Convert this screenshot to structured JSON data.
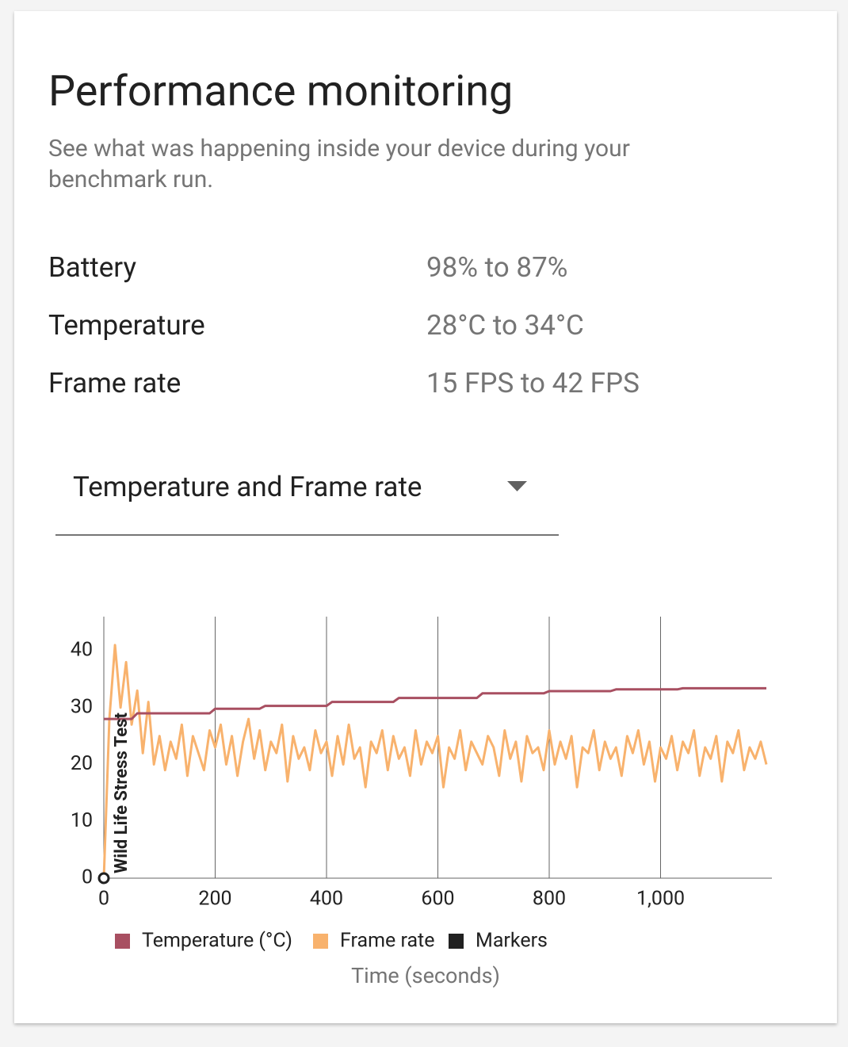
{
  "header": {
    "title": "Performance monitoring",
    "subtitle": "See what was happening inside your device during your benchmark run."
  },
  "stats": [
    {
      "label": "Battery",
      "value": "98% to 87%"
    },
    {
      "label": "Temperature",
      "value": "28°C to 34°C"
    },
    {
      "label": "Frame rate",
      "value": "15 FPS to 42 FPS"
    }
  ],
  "dropdown": {
    "selected": "Temperature and Frame rate"
  },
  "chart_data": {
    "type": "line",
    "x_label": "Time (seconds)",
    "x": [
      0,
      10,
      20,
      30,
      40,
      50,
      60,
      70,
      80,
      90,
      100,
      110,
      120,
      130,
      140,
      150,
      160,
      170,
      180,
      190,
      200,
      210,
      220,
      230,
      240,
      250,
      260,
      270,
      280,
      290,
      300,
      310,
      320,
      330,
      340,
      350,
      360,
      370,
      380,
      390,
      400,
      410,
      420,
      430,
      440,
      450,
      460,
      470,
      480,
      490,
      500,
      510,
      520,
      530,
      540,
      550,
      560,
      570,
      580,
      590,
      600,
      610,
      620,
      630,
      640,
      650,
      660,
      670,
      680,
      690,
      700,
      710,
      720,
      730,
      740,
      750,
      760,
      770,
      780,
      790,
      800,
      810,
      820,
      830,
      840,
      850,
      860,
      870,
      880,
      890,
      900,
      910,
      920,
      930,
      940,
      950,
      960,
      970,
      980,
      990,
      1000,
      1010,
      1020,
      1030,
      1040,
      1050,
      1060,
      1070,
      1080,
      1090,
      1100,
      1110,
      1120,
      1130,
      1140,
      1150,
      1160,
      1170,
      1180,
      1190
    ],
    "series": [
      {
        "name": "Temperature (°C)",
        "color": "#a84f61",
        "values": [
          28,
          28,
          28,
          28,
          28,
          28,
          29,
          29,
          29,
          29,
          29,
          29,
          29,
          29,
          29,
          29,
          29,
          29,
          29,
          29,
          29.8,
          29.8,
          29.8,
          29.8,
          29.8,
          29.8,
          29.8,
          29.8,
          29.8,
          30.3,
          30.3,
          30.3,
          30.3,
          30.3,
          30.3,
          30.3,
          30.3,
          30.3,
          30.3,
          30.3,
          30.3,
          31,
          31,
          31,
          31,
          31,
          31,
          31,
          31,
          31,
          31,
          31,
          31,
          31.7,
          31.7,
          31.7,
          31.7,
          31.7,
          31.7,
          31.7,
          31.7,
          31.7,
          31.7,
          31.7,
          31.7,
          31.7,
          31.7,
          31.7,
          32.5,
          32.5,
          32.5,
          32.5,
          32.5,
          32.5,
          32.5,
          32.5,
          32.5,
          32.5,
          32.5,
          32.5,
          32.9,
          32.9,
          32.9,
          32.9,
          32.9,
          32.9,
          32.9,
          32.9,
          32.9,
          32.9,
          32.9,
          32.9,
          33.2,
          33.2,
          33.2,
          33.2,
          33.2,
          33.2,
          33.2,
          33.2,
          33.2,
          33.2,
          33.2,
          33.2,
          33.4,
          33.4,
          33.4,
          33.4,
          33.4,
          33.4,
          33.4,
          33.4,
          33.4,
          33.4,
          33.4,
          33.4,
          33.4,
          33.4,
          33.4,
          33.4
        ]
      },
      {
        "name": "Frame rate",
        "color": "#f8b26d",
        "values": [
          0,
          28,
          41,
          30,
          38,
          27,
          33,
          22,
          31,
          20,
          25,
          19,
          24,
          21,
          27,
          18,
          25,
          22,
          19,
          26,
          23,
          27,
          20,
          25,
          18,
          24,
          28,
          21,
          26,
          19,
          24,
          22,
          27,
          17,
          25,
          21,
          23,
          19,
          26,
          22,
          24,
          18,
          25,
          20,
          27,
          21,
          23,
          16,
          24,
          22,
          26,
          19,
          25,
          21,
          23,
          18,
          26,
          20,
          24,
          22,
          25,
          16,
          23,
          21,
          26,
          19,
          24,
          22,
          20,
          25,
          23,
          18,
          26,
          21,
          24,
          17,
          25,
          22,
          23,
          19,
          26,
          20,
          24,
          21,
          25,
          16,
          23,
          22,
          26,
          19,
          24,
          21,
          23,
          18,
          25,
          22,
          26,
          20,
          24,
          17,
          23,
          21,
          25,
          19,
          24,
          22,
          26,
          18,
          23,
          21,
          25,
          17,
          24,
          22,
          26,
          19,
          23,
          21,
          24,
          20
        ]
      }
    ],
    "markers": {
      "name": "Markers",
      "color": "#212121",
      "x": [
        0
      ],
      "labels": [
        "Wild Life Stress Test"
      ]
    },
    "xlim": [
      0,
      1200
    ],
    "xticks": [
      0,
      200,
      400,
      600,
      800,
      {
        "value": 1000,
        "label": "1,000"
      }
    ],
    "ylim": [
      0,
      46
    ],
    "yticks": [
      0,
      10,
      20,
      30,
      40
    ],
    "grid": "x"
  }
}
